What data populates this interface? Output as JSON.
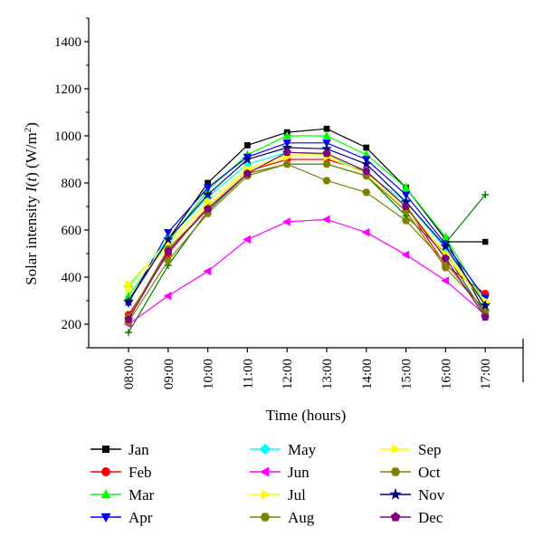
{
  "chart_data": {
    "type": "line",
    "title": "",
    "xlabel": "Time (hours)",
    "ylabel": {
      "prefix": "Solar intensity ",
      "var": "I",
      "mid": "(",
      "var2": "t",
      "suffix": ") (W/m",
      "sup": "2",
      "end": ")"
    },
    "categories": [
      "08:00",
      "09:00",
      "10:00",
      "11:00",
      "12:00",
      "13:00",
      "14:00",
      "15:00",
      "16:00",
      "17:00"
    ],
    "ylim": [
      100,
      1500
    ],
    "yticks": [
      200,
      400,
      600,
      800,
      1000,
      1200,
      1400
    ],
    "grid": false,
    "legend_position": "bottom",
    "series": [
      {
        "name": "Jan",
        "color": "#000000",
        "marker": "square",
        "values": [
          300,
          560,
          800,
          960,
          1015,
          1030,
          950,
          780,
          560,
          250
        ]
      },
      {
        "name": "Feb",
        "color": "#ff0000",
        "marker": "circle",
        "values": [
          240,
          500,
          700,
          850,
          900,
          900,
          850,
          700,
          450,
          330
        ]
      },
      {
        "name": "Mar",
        "color": "#00ff00",
        "marker": "triangle-up",
        "values": [
          320,
          550,
          770,
          920,
          1000,
          1000,
          920,
          780,
          570,
          290
        ]
      },
      {
        "name": "Apr",
        "color": "#0000ff",
        "marker": "triangle-down",
        "values": [
          290,
          590,
          780,
          910,
          970,
          970,
          900,
          750,
          540,
          310
        ]
      },
      {
        "name": "May",
        "color": "#00ffff",
        "marker": "diamond",
        "values": [
          360,
          560,
          740,
          880,
          930,
          920,
          840,
          720,
          520,
          290
        ]
      },
      {
        "name": "Jun",
        "color": "#ff00ff",
        "marker": "triangle-left",
        "values": [
          200,
          320,
          425,
          560,
          635,
          645,
          590,
          495,
          385,
          240
        ]
      },
      {
        "name": "Jul",
        "color": "#ffff00",
        "marker": "triangle-right",
        "values": [
          370,
          550,
          720,
          860,
          920,
          920,
          850,
          700,
          500,
          300
        ]
      },
      {
        "name": "Aug",
        "color": "#808000",
        "marker": "hexagon",
        "values": [
          210,
          470,
          670,
          830,
          880,
          810,
          760,
          640,
          460,
          255
        ]
      },
      {
        "name": "Sep",
        "color": "#ffff00",
        "marker": "triangle-right",
        "values": [
          350,
          530,
          700,
          850,
          910,
          910,
          840,
          690,
          490,
          290
        ]
      },
      {
        "name": "Oct",
        "color": "#808000",
        "marker": "hexagon",
        "values": [
          230,
          520,
          690,
          840,
          880,
          880,
          830,
          680,
          440,
          260
        ]
      },
      {
        "name": "Nov",
        "color": "#000080",
        "marker": "star",
        "values": [
          295,
          560,
          750,
          900,
          950,
          945,
          880,
          720,
          530,
          280
        ]
      },
      {
        "name": "Dec",
        "color": "#800080",
        "marker": "pentagon",
        "values": [
          220,
          510,
          690,
          840,
          930,
          925,
          850,
          700,
          480,
          230
        ]
      }
    ],
    "annotations": [
      {
        "marker": "square",
        "color": "#000000",
        "x_cat": "17:00",
        "y": 550,
        "from_cat": "16:00",
        "from_y": 550
      },
      {
        "marker": "plus",
        "color": "#008000",
        "x_cat": "17:00",
        "y": 750,
        "from_cat": "16:00",
        "from_y": 545
      }
    ],
    "extra_series": [
      {
        "marker": "plus",
        "color": "#008000",
        "values": [
          165,
          450,
          680,
          840,
          880,
          880,
          830,
          660,
          500,
          240
        ]
      }
    ]
  }
}
